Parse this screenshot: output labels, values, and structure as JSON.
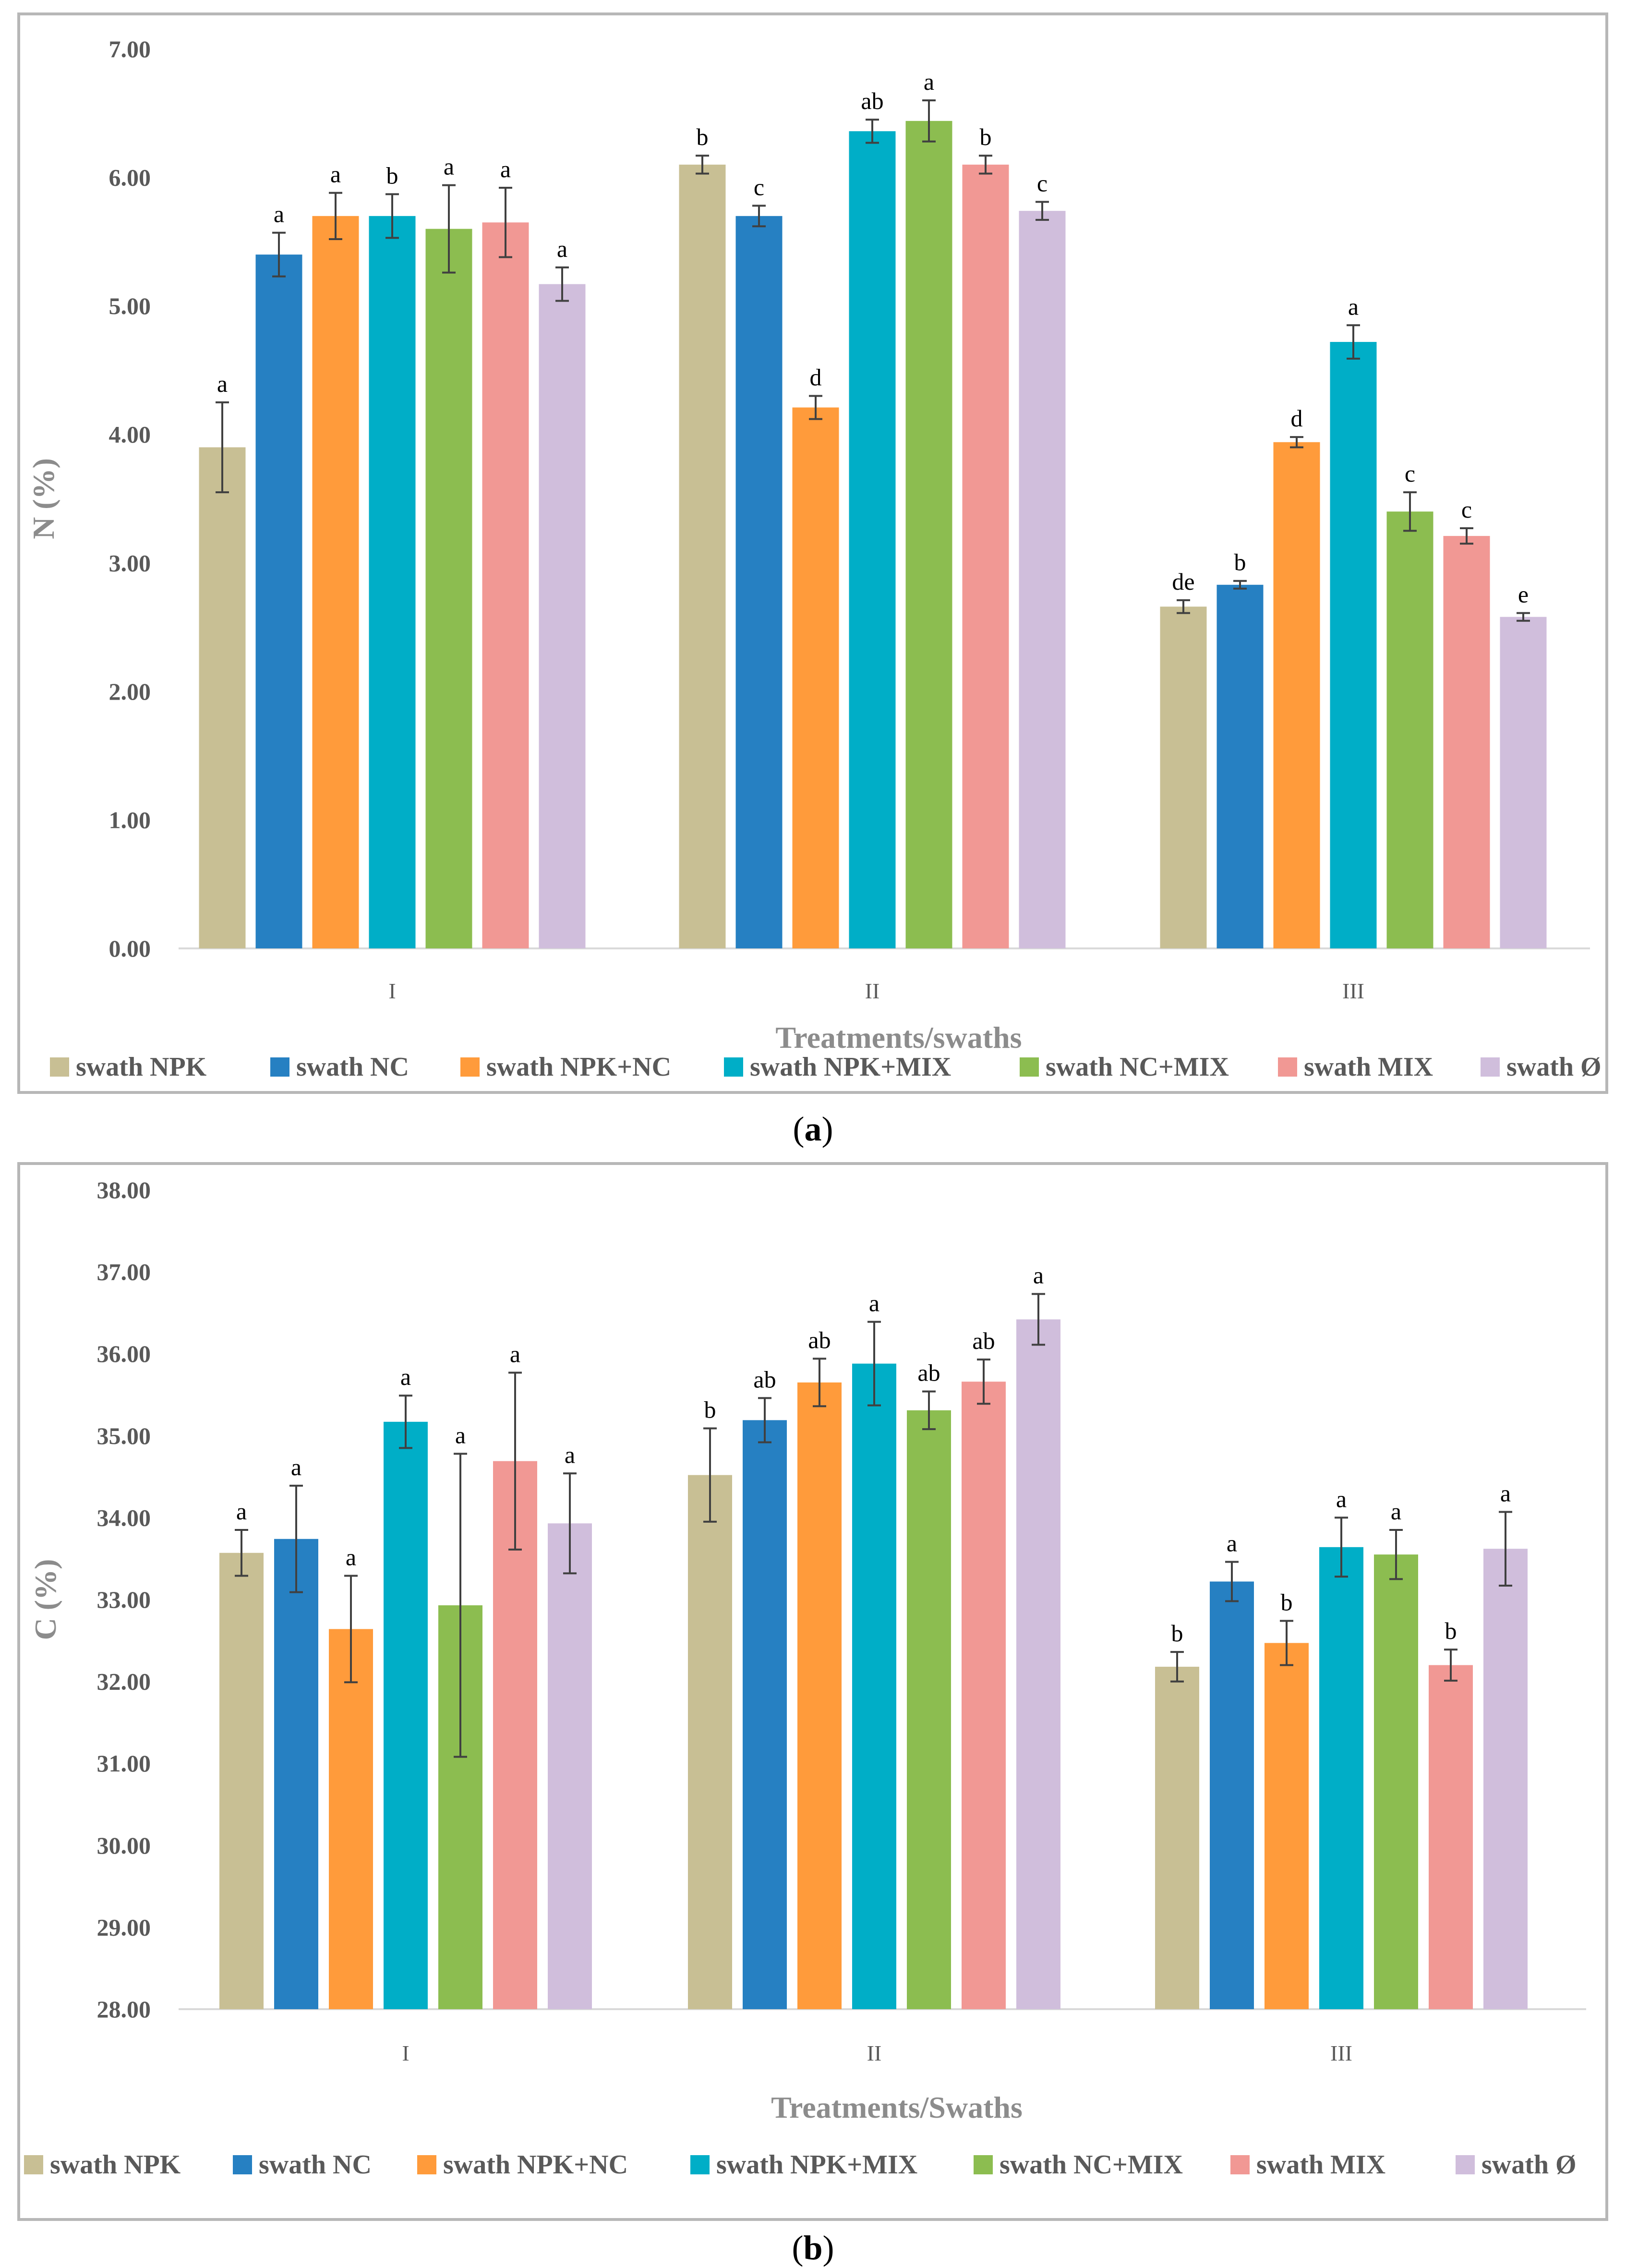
{
  "chart_data": [
    {
      "id": "a",
      "type": "bar",
      "caption_label": "a",
      "ylabel": "N (%)",
      "xlabel": "Treatments/swaths",
      "ylim": [
        0,
        7
      ],
      "yticks": [
        "0.00",
        "1.00",
        "2.00",
        "3.00",
        "4.00",
        "5.00",
        "6.00",
        "7.00"
      ],
      "categories": [
        "I",
        "II",
        "III"
      ],
      "series": [
        {
          "name": "swath NPK",
          "color": "#c8bf94",
          "values": [
            3.9,
            6.1,
            2.66
          ],
          "errors": [
            0.35,
            0.07,
            0.05
          ],
          "letters": [
            "a",
            "b",
            "de"
          ]
        },
        {
          "name": "swath NC",
          "color": "#2680c2",
          "values": [
            5.4,
            5.7,
            2.83
          ],
          "errors": [
            0.17,
            0.08,
            0.03
          ],
          "letters": [
            "a",
            "c",
            "b"
          ]
        },
        {
          "name": "swath NPK+NC",
          "color": "#ff9b3b",
          "values": [
            5.7,
            4.21,
            3.94
          ],
          "errors": [
            0.18,
            0.09,
            0.04
          ],
          "letters": [
            "a",
            "d",
            "d"
          ]
        },
        {
          "name": "swath NPK+MIX",
          "color": "#00aec7",
          "values": [
            5.7,
            6.36,
            4.72
          ],
          "errors": [
            0.17,
            0.09,
            0.13
          ],
          "letters": [
            "b",
            "ab",
            "a"
          ]
        },
        {
          "name": "swath NC+MIX",
          "color": "#8cbd50",
          "values": [
            5.6,
            6.44,
            3.4
          ],
          "errors": [
            0.34,
            0.16,
            0.15
          ],
          "letters": [
            "a",
            "a",
            "c"
          ]
        },
        {
          "name": "swath MIX",
          "color": "#f19894",
          "values": [
            5.65,
            6.1,
            3.21
          ],
          "errors": [
            0.27,
            0.07,
            0.06
          ],
          "letters": [
            "a",
            "b",
            "c"
          ]
        },
        {
          "name": "swath Ø",
          "color": "#d0bedc",
          "values": [
            5.17,
            5.74,
            2.58
          ],
          "errors": [
            0.13,
            0.07,
            0.03
          ],
          "letters": [
            "a",
            "c",
            "e"
          ]
        }
      ]
    },
    {
      "id": "b",
      "type": "bar",
      "caption_label": "b",
      "ylabel": "C (%)",
      "xlabel": "Treatments/Swaths",
      "ylim": [
        28,
        38
      ],
      "yticks": [
        "28.00",
        "29.00",
        "30.00",
        "31.00",
        "32.00",
        "33.00",
        "34.00",
        "35.00",
        "36.00",
        "37.00",
        "38.00"
      ],
      "categories": [
        "I",
        "II",
        "III"
      ],
      "series": [
        {
          "name": "swath NPK",
          "color": "#c8bf94",
          "values": [
            33.57,
            34.52,
            32.18
          ],
          "errors": [
            0.28,
            0.57,
            0.18
          ],
          "letters": [
            "a",
            "b",
            "b"
          ]
        },
        {
          "name": "swath NC",
          "color": "#2680c2",
          "values": [
            33.74,
            35.19,
            33.22
          ],
          "errors": [
            0.65,
            0.27,
            0.24
          ],
          "letters": [
            "a",
            "ab",
            "a"
          ]
        },
        {
          "name": "swath NPK+NC",
          "color": "#ff9b3b",
          "values": [
            32.64,
            35.65,
            32.47
          ],
          "errors": [
            0.65,
            0.29,
            0.27
          ],
          "letters": [
            "a",
            "ab",
            "b"
          ]
        },
        {
          "name": "swath NPK+MIX",
          "color": "#00aec7",
          "values": [
            35.17,
            35.88,
            33.64
          ],
          "errors": [
            0.32,
            0.51,
            0.36
          ],
          "letters": [
            "a",
            "a",
            "a"
          ]
        },
        {
          "name": "swath NC+MIX",
          "color": "#8cbd50",
          "values": [
            32.93,
            35.31,
            33.55
          ],
          "errors": [
            1.85,
            0.23,
            0.3
          ],
          "letters": [
            "a",
            "ab",
            "a"
          ]
        },
        {
          "name": "swath MIX",
          "color": "#f19894",
          "values": [
            34.69,
            35.66,
            32.2
          ],
          "errors": [
            1.08,
            0.27,
            0.19
          ],
          "letters": [
            "a",
            "ab",
            "b"
          ]
        },
        {
          "name": "swath Ø",
          "color": "#d0bedc",
          "values": [
            33.93,
            36.42,
            33.62
          ],
          "errors": [
            0.61,
            0.31,
            0.45
          ],
          "letters": [
            "a",
            "a",
            "a"
          ]
        }
      ]
    }
  ],
  "captions": {
    "a": "a",
    "b": "b"
  }
}
